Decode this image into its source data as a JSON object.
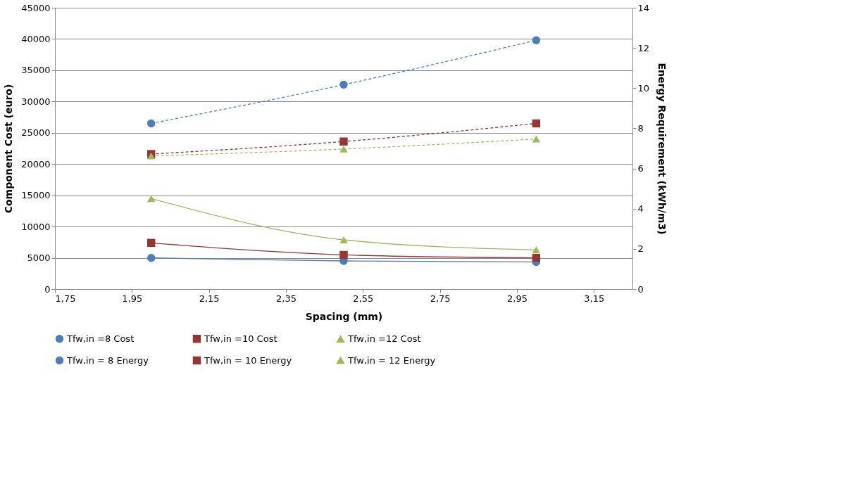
{
  "chart_data": {
    "type": "line",
    "xlabel": "Spacing (mm)",
    "ylabel": "Component Cost (euro)",
    "y2label": "Energy Requirement (kWh/m3)",
    "x": [
      2,
      2.5,
      3
    ],
    "series": [
      {
        "name": "Tfw,in =8 Cost",
        "color": "#4a7ebb",
        "values": [
          26500,
          32700,
          39800
        ],
        "line_style": "dashed",
        "marker": "circle"
      },
      {
        "name": "Tfw,in =10 Cost",
        "color": "#943634",
        "values": [
          21600,
          23600,
          26500
        ],
        "line_style": "dashed",
        "marker": "square"
      },
      {
        "name": "Tfw,in =12 Cost",
        "color": "#9bbb59",
        "values": [
          21300,
          22400,
          24000
        ],
        "line_style": "dashed",
        "marker": "triangle"
      },
      {
        "name": "Tfw,in = 8 Energy",
        "color": "#4a7ebb",
        "values": [
          1.55,
          1.4,
          1.35
        ],
        "axis": "y2",
        "line_style": "solid",
        "marker": "circle"
      },
      {
        "name": "Tfw,in = 10 Energy",
        "color": "#943634",
        "values": [
          2.3,
          1.7,
          1.55
        ],
        "axis": "y2",
        "line_style": "solid",
        "marker": "square"
      },
      {
        "name": "Tfw,in = 12 Energy",
        "color": "#9bbb59",
        "values": [
          4.5,
          2.45,
          1.95
        ],
        "axis": "y2",
        "line_style": "solid",
        "marker": "triangle"
      }
    ],
    "xlim": [
      1.75,
      3.25
    ],
    "xticks": [
      {
        "value": 1.75,
        "label": "1,75"
      },
      {
        "value": 1.95,
        "label": "1,95"
      },
      {
        "value": 2.15,
        "label": "2,15"
      },
      {
        "value": 2.35,
        "label": "2,35"
      },
      {
        "value": 2.55,
        "label": "2,55"
      },
      {
        "value": 2.75,
        "label": "2,75"
      },
      {
        "value": 2.95,
        "label": "2,95"
      },
      {
        "value": 3.15,
        "label": "3,15"
      }
    ],
    "ylim": [
      0,
      45000
    ],
    "yticks": [
      0,
      5000,
      10000,
      15000,
      20000,
      25000,
      30000,
      35000,
      40000,
      45000
    ],
    "y2lim": [
      0,
      14
    ],
    "y2ticks": [
      0,
      2,
      4,
      6,
      8,
      10,
      12,
      14
    ],
    "grid": "y",
    "legend": "bottom"
  }
}
